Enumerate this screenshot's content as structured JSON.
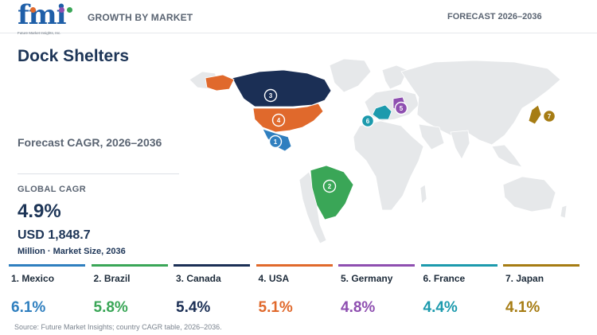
{
  "header": {
    "logo_text": "fmi",
    "logo_tagline": "Future Market Insights, Inc.",
    "section": "GROWTH BY MARKET",
    "forecast": "FORECAST 2026–2036"
  },
  "summary": {
    "title": "Dock Shelters",
    "subtitle": "Forecast CAGR, 2026–2036",
    "global_label": "GLOBAL CAGR",
    "global_value": "4.9%",
    "market_size": "USD 1,848.7",
    "market_unit": "Million · Market Size, 2036"
  },
  "map": {
    "base_color": "#e6e8ea",
    "markers": [
      {
        "rank": "1",
        "country": "Mexico",
        "color": "#2f7fbf"
      },
      {
        "rank": "2",
        "country": "Brazil",
        "color": "#3aa657"
      },
      {
        "rank": "3",
        "country": "Canada",
        "color": "#1b2f55"
      },
      {
        "rank": "4",
        "country": "USA",
        "color": "#e0692c"
      },
      {
        "rank": "5",
        "country": "Germany",
        "color": "#8e4fb0"
      },
      {
        "rank": "6",
        "country": "France",
        "color": "#1c9aad"
      },
      {
        "rank": "7",
        "country": "Japan",
        "color": "#a67c13"
      }
    ]
  },
  "countries": [
    {
      "label": "1. Mexico",
      "cagr": "6.1%",
      "color": "#2f7fbf"
    },
    {
      "label": "2. Brazil",
      "cagr": "5.8%",
      "color": "#3aa657"
    },
    {
      "label": "3. Canada",
      "cagr": "5.4%",
      "color": "#1b2f55"
    },
    {
      "label": "4. USA",
      "cagr": "5.1%",
      "color": "#e0692c"
    },
    {
      "label": "5. Germany",
      "cagr": "4.8%",
      "color": "#8e4fb0"
    },
    {
      "label": "6. France",
      "cagr": "4.4%",
      "color": "#1c9aad"
    },
    {
      "label": "7. Japan",
      "cagr": "4.1%",
      "color": "#a67c13"
    }
  ],
  "source": "Source: Future Market Insights; country CAGR table, 2026–2036."
}
